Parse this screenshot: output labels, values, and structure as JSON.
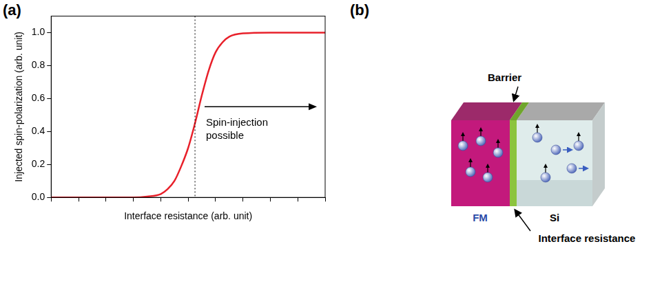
{
  "chart_data": {
    "type": "line",
    "panel": "(a)",
    "x_label": "Interface resistance (arb. unit)",
    "y_label": "Injected spin-polarization (arb. unit)",
    "x": [
      0,
      1,
      2,
      3,
      3.5,
      4,
      4.25,
      4.5,
      4.75,
      5,
      5.25,
      5.5,
      5.75,
      6,
      6.25,
      6.5,
      7,
      8,
      9,
      10
    ],
    "values": [
      0,
      0,
      0,
      0,
      0.005,
      0.02,
      0.05,
      0.1,
      0.19,
      0.3,
      0.45,
      0.62,
      0.77,
      0.88,
      0.94,
      0.975,
      0.995,
      1,
      1,
      1
    ],
    "color": "#e8202a",
    "line_style": "solid",
    "xlim": [
      0,
      10
    ],
    "xticks": [
      0,
      1,
      2,
      3,
      4,
      5,
      6,
      7,
      8,
      9,
      10
    ],
    "ylim": [
      0,
      1.1
    ],
    "yticks": [
      {
        "value": 0,
        "label": "0.0"
      },
      {
        "value": 0.2,
        "label": "0.2"
      },
      {
        "value": 0.4,
        "label": "0.4"
      },
      {
        "value": 0.6,
        "label": "0.6"
      },
      {
        "value": 0.8,
        "label": "0.8"
      },
      {
        "value": 1,
        "label": "1.0"
      }
    ],
    "grid": false,
    "tick_labels": "y",
    "vline": {
      "x": 5.25,
      "line_style": "dotted"
    },
    "annotation": {
      "text": "Spin-injection possible",
      "x_start": 5.6,
      "x_end": 9.7,
      "y": 0.55
    }
  },
  "diagram": {
    "panel": "(b)",
    "labels": {
      "barrier": "Barrier",
      "fm": "FM",
      "si": "Si",
      "interface": "Interface resistance"
    }
  }
}
